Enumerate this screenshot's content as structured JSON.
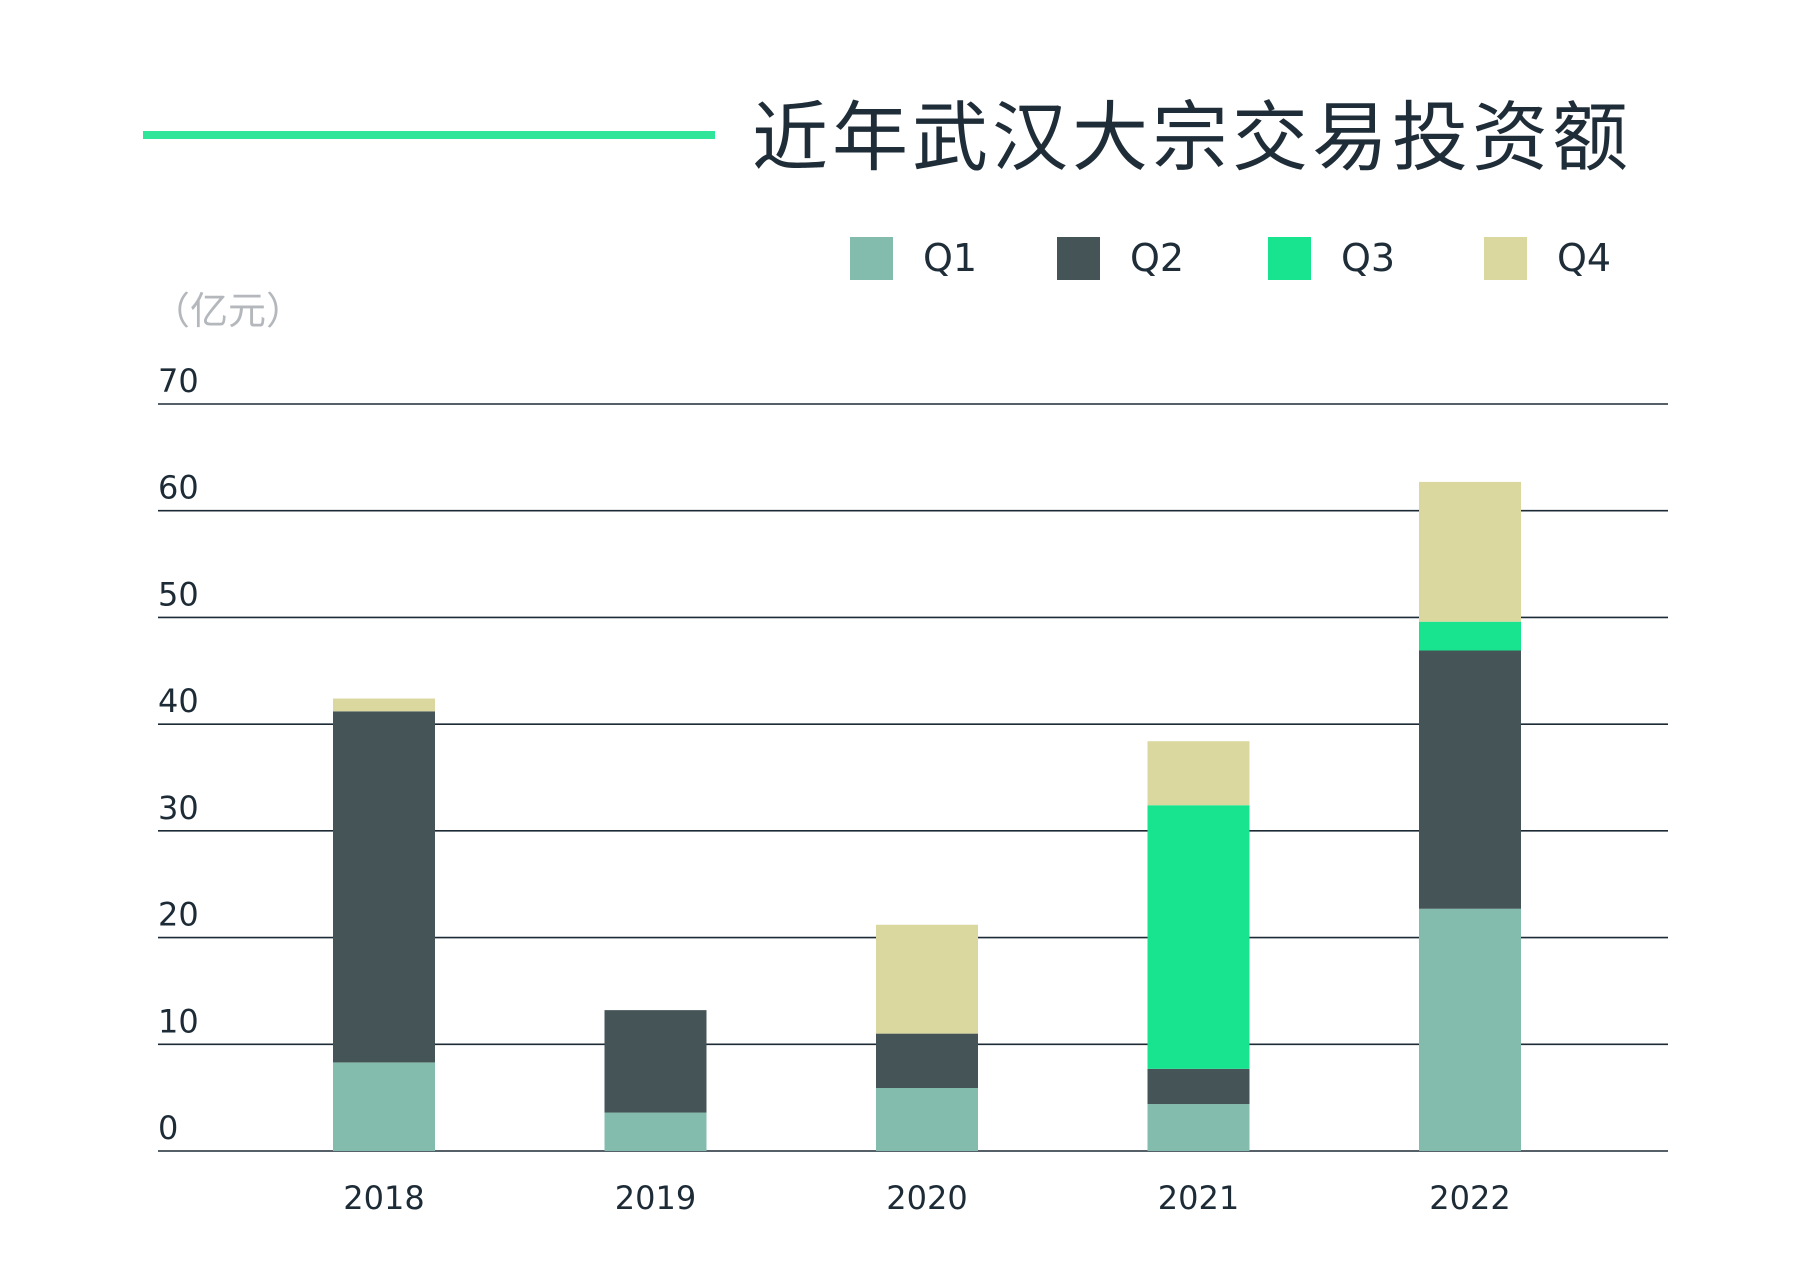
{
  "title": "近年武汉大宗交易投资额",
  "unit": "（亿元）",
  "legend": [
    {
      "label": "Q1",
      "color": "#83bcac"
    },
    {
      "label": "Q2",
      "color": "#445457"
    },
    {
      "label": "Q3",
      "color": "#18e38f"
    },
    {
      "label": "Q4",
      "color": "#dbd89f"
    }
  ],
  "chart_data": {
    "type": "bar",
    "stacked": true,
    "categories": [
      "2018",
      "2019",
      "2020",
      "2021",
      "2022"
    ],
    "series": [
      {
        "name": "Q1",
        "color": "#83bcac",
        "values": [
          8.3,
          3.6,
          5.9,
          4.4,
          22.7
        ]
      },
      {
        "name": "Q2",
        "color": "#445457",
        "values": [
          32.9,
          9.6,
          5.1,
          3.3,
          24.2
        ]
      },
      {
        "name": "Q3",
        "color": "#18e38f",
        "values": [
          0,
          0,
          0,
          24.7,
          2.7
        ]
      },
      {
        "name": "Q4",
        "color": "#dbd89f",
        "values": [
          1.2,
          0,
          10.2,
          6.0,
          13.1
        ]
      }
    ],
    "yticks": [
      0,
      10,
      20,
      30,
      40,
      50,
      60,
      70
    ],
    "ylim": [
      0,
      70
    ],
    "grid": true,
    "legend_position": "top-right"
  }
}
